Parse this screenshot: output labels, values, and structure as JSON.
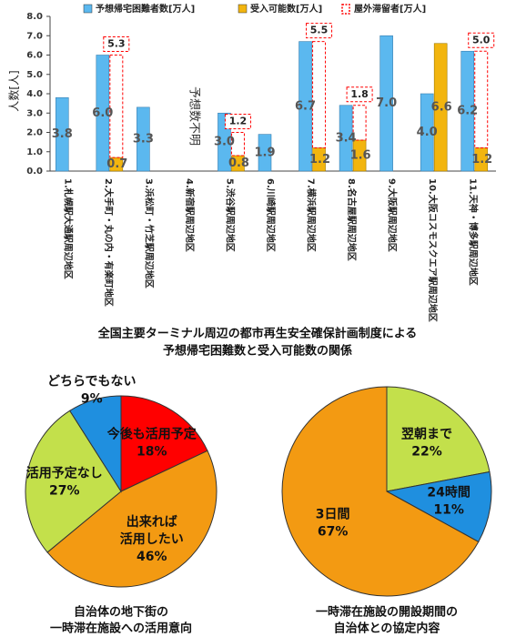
{
  "chart_data": [
    {
      "type": "bar",
      "title": [
        "全国主要ターミナル周辺の都市再生安全確保計画制度による",
        "予想帰宅困難数と受入可能数の関係"
      ],
      "y_label": "人数[人]",
      "categories": [
        "1.札幌駅大通駅周辺地区",
        "2.大手町・丸の内・有楽町地区",
        "3.浜松町・竹芝駅周辺地区",
        "4.新宿駅周辺地区",
        "5.渋谷駅周辺地区",
        "6.川崎駅周辺地区",
        "7.横浜駅周辺地区",
        "8.名古屋駅周辺地区",
        "9.大阪駅周辺地区",
        "10.大阪コスモスクエア駅周辺地区",
        "11.天神・博多駅周辺地区"
      ],
      "category_notes": [
        null,
        null,
        null,
        "予想数不明",
        null,
        null,
        null,
        null,
        null,
        null,
        null
      ],
      "series": [
        {
          "name": "予想帰宅困難者数[万人]",
          "color": "#5bb8ef",
          "values": [
            3.8,
            6.0,
            3.3,
            null,
            3.0,
            1.9,
            6.7,
            3.4,
            7.0,
            4.0,
            6.2
          ],
          "value_labels": [
            "3.8",
            "6.0",
            "3.3",
            null,
            "3.0",
            "1.9",
            "6.7",
            "3.4",
            "7.0",
            "4.0",
            "6.2"
          ]
        },
        {
          "name": "受入可能数[万人]",
          "color": "#f2b50f",
          "values": [
            null,
            0.7,
            null,
            null,
            0.8,
            null,
            1.2,
            1.6,
            null,
            6.6,
            1.2
          ],
          "value_labels": [
            null,
            "0.7",
            null,
            null,
            "0.8",
            null,
            "1.2",
            "1.6",
            null,
            "6.6",
            "1.2"
          ]
        },
        {
          "name": "屋外滞留者[万人]",
          "color": "#ff0000",
          "style": "dashed-box",
          "values": [
            null,
            5.3,
            null,
            null,
            1.2,
            null,
            5.5,
            1.8,
            null,
            null,
            5.0
          ],
          "value_labels": [
            null,
            "5.3",
            null,
            null,
            "1.2",
            null,
            "5.5",
            "1.8",
            null,
            null,
            "5.0"
          ]
        }
      ],
      "ylim": [
        0,
        8
      ],
      "yticks": [
        {
          "value": 0,
          "label": "0.0"
        },
        {
          "value": 1,
          "label": "1.0"
        },
        {
          "value": 2,
          "label": "2.0"
        },
        {
          "value": 3,
          "label": "3.0"
        },
        {
          "value": 4,
          "label": "4.0"
        },
        {
          "value": 5,
          "label": "5.0"
        },
        {
          "value": 6,
          "label": "6.0"
        },
        {
          "value": 7,
          "label": "7.0"
        },
        {
          "value": 8,
          "label": "8.0"
        }
      ]
    },
    {
      "type": "pie",
      "title": [
        "自治体の地下街の",
        "一時滞在施設への活用意向"
      ],
      "categories": [
        [
          "今後も活用予定"
        ],
        [
          "出来れば",
          "活用したい"
        ],
        [
          "活用予定なし"
        ],
        [
          "どちらでもない"
        ]
      ],
      "values": [
        18,
        46,
        27,
        9
      ],
      "value_labels": [
        "18%",
        "46%",
        "27%",
        "9%"
      ],
      "colors": [
        "#ff0000",
        "#f39a12",
        "#c3e04b",
        "#1f8fdf"
      ]
    },
    {
      "type": "pie",
      "title": [
        "一時滞在施設の開設期間の",
        "自治体との協定内容"
      ],
      "categories": [
        [
          "翌朝まで"
        ],
        [
          "24時間"
        ],
        [
          "3日間"
        ]
      ],
      "values": [
        22,
        11,
        67
      ],
      "value_labels": [
        "22%",
        "11%",
        "67%"
      ],
      "colors": [
        "#c3e04b",
        "#1f8fdf",
        "#f39a12"
      ]
    }
  ]
}
